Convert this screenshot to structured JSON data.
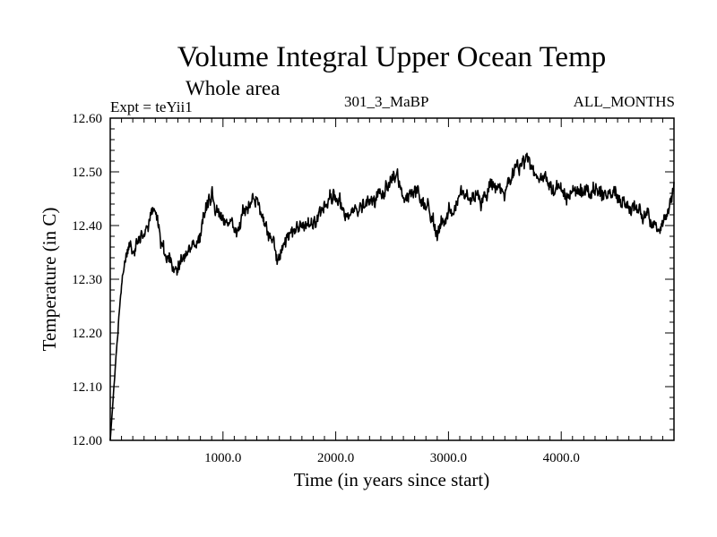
{
  "chart_data": {
    "type": "line",
    "title": "Volume Integral Upper Ocean Temp",
    "subtitle": "Whole area",
    "experiment": "Expt = teYii1",
    "run_label": "301_3_MaBP",
    "period_label": "ALL_MONTHS",
    "xlabel": "Time (in years since start)",
    "ylabel": "Temperature (in C)",
    "xlim": [
      0,
      5000
    ],
    "ylim": [
      12.0,
      12.6
    ],
    "x_ticks": [
      1000,
      2000,
      3000,
      4000
    ],
    "x_tick_labels": [
      "1000.0",
      "2000.0",
      "3000.0",
      "4000.0"
    ],
    "y_ticks": [
      12.0,
      12.1,
      12.2,
      12.3,
      12.4,
      12.5,
      12.6
    ],
    "y_tick_labels": [
      "12.00",
      "12.10",
      "12.20",
      "12.30",
      "12.40",
      "12.50",
      "12.60"
    ],
    "series": [
      {
        "name": "upper ocean temperature",
        "noise_amplitude": 0.018,
        "x": [
          0,
          20,
          40,
          60,
          80,
          100,
          130,
          160,
          200,
          250,
          300,
          350,
          400,
          450,
          500,
          550,
          600,
          650,
          700,
          750,
          800,
          850,
          900,
          950,
          1000,
          1100,
          1200,
          1300,
          1350,
          1400,
          1450,
          1500,
          1600,
          1700,
          1800,
          1900,
          2000,
          2100,
          2200,
          2300,
          2400,
          2500,
          2550,
          2600,
          2700,
          2800,
          2900,
          2950,
          3000,
          3100,
          3200,
          3300,
          3400,
          3500,
          3600,
          3700,
          3750,
          3800,
          3900,
          4000,
          4100,
          4200,
          4300,
          4400,
          4500,
          4600,
          4700,
          4800,
          4850,
          4900,
          4950,
          5000
        ],
        "values": [
          12.0,
          12.06,
          12.12,
          12.18,
          12.24,
          12.28,
          12.33,
          12.36,
          12.35,
          12.37,
          12.38,
          12.42,
          12.43,
          12.37,
          12.34,
          12.33,
          12.32,
          12.34,
          12.36,
          12.36,
          12.39,
          12.43,
          12.46,
          12.43,
          12.41,
          12.39,
          12.43,
          12.45,
          12.42,
          12.38,
          12.36,
          12.34,
          12.38,
          12.4,
          12.41,
          12.43,
          12.46,
          12.42,
          12.43,
          12.45,
          12.45,
          12.48,
          12.49,
          12.44,
          12.46,
          12.44,
          12.39,
          12.4,
          12.43,
          12.45,
          12.46,
          12.44,
          12.48,
          12.46,
          12.51,
          12.52,
          12.51,
          12.49,
          12.48,
          12.46,
          12.46,
          12.47,
          12.46,
          12.46,
          12.45,
          12.44,
          12.43,
          12.41,
          12.39,
          12.41,
          12.44,
          12.48
        ]
      }
    ]
  }
}
